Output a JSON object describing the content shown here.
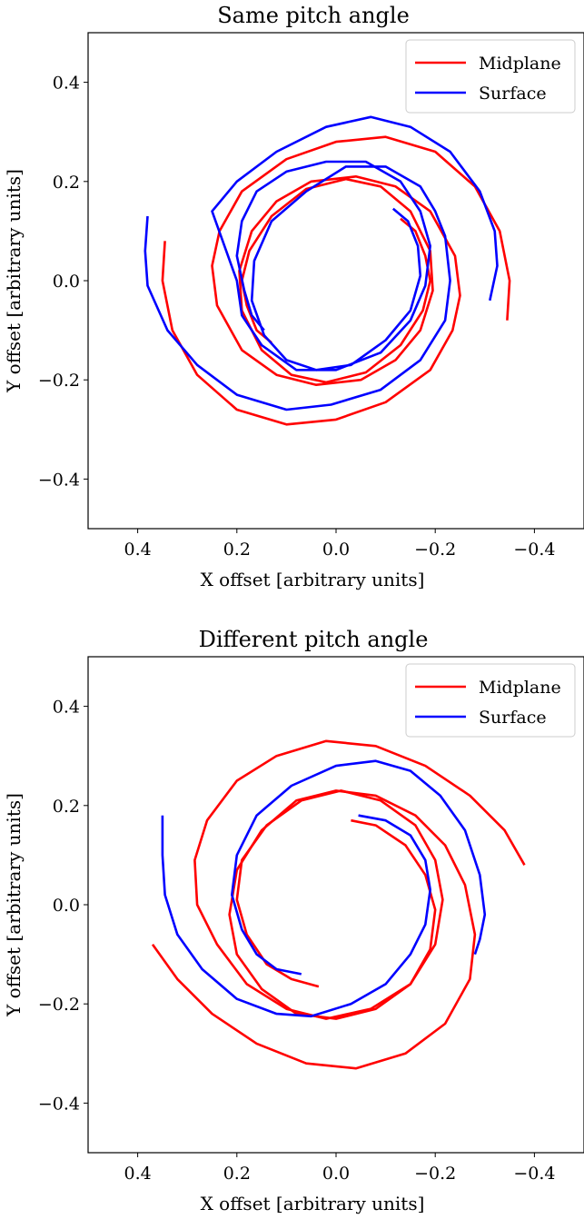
{
  "colors": {
    "midplane": "#ff0000",
    "surface": "#0000ff"
  },
  "chart_data": [
    {
      "type": "line",
      "title": "Same pitch angle",
      "xlabel": "X offset [arbitrary units]",
      "ylabel": "Y offset [arbitrary units]",
      "xlim": [
        0.5,
        -0.5
      ],
      "ylim": [
        -0.5,
        0.5
      ],
      "x_inverted": true,
      "xticks": [
        0.4,
        0.2,
        0.0,
        -0.2,
        -0.4
      ],
      "yticks": [
        0.4,
        0.2,
        0.0,
        -0.2,
        -0.4
      ],
      "xtick_labels": [
        "0.4",
        "0.2",
        "0.0",
        "−0.2",
        "−0.4"
      ],
      "ytick_labels": [
        "0.4",
        "0.2",
        "0.0",
        "−0.2",
        "−0.4"
      ],
      "grid": false,
      "legend_position": "top-right",
      "legend": [
        "Midplane",
        "Surface"
      ],
      "series": [
        {
          "name": "Midplane",
          "color": "#ff0000",
          "arms": [
            [
              [
                -0.13,
                0.125
              ],
              [
                -0.16,
                0.1
              ],
              [
                -0.18,
                0.05
              ],
              [
                -0.19,
                0.0
              ],
              [
                -0.175,
                -0.06
              ],
              [
                -0.13,
                -0.13
              ],
              [
                -0.06,
                -0.185
              ],
              [
                0.02,
                -0.205
              ],
              [
                0.09,
                -0.19
              ],
              [
                0.15,
                -0.14
              ],
              [
                0.19,
                -0.06
              ],
              [
                0.195,
                0.02
              ],
              [
                0.17,
                0.1
              ],
              [
                0.12,
                0.16
              ],
              [
                0.05,
                0.2
              ],
              [
                -0.04,
                0.21
              ],
              [
                -0.12,
                0.19
              ],
              [
                -0.19,
                0.14
              ],
              [
                -0.24,
                0.05
              ],
              [
                -0.25,
                -0.03
              ],
              [
                -0.235,
                -0.1
              ],
              [
                -0.19,
                -0.18
              ],
              [
                -0.1,
                -0.245
              ],
              [
                0.0,
                -0.28
              ],
              [
                0.1,
                -0.29
              ],
              [
                0.2,
                -0.26
              ],
              [
                0.28,
                -0.19
              ],
              [
                0.33,
                -0.1
              ],
              [
                0.35,
                0.0
              ],
              [
                0.345,
                0.08
              ]
            ],
            [
              [
                0.13,
                -0.125
              ],
              [
                0.16,
                -0.1
              ],
              [
                0.18,
                -0.05
              ],
              [
                0.19,
                0.0
              ],
              [
                0.175,
                0.06
              ],
              [
                0.13,
                0.13
              ],
              [
                0.06,
                0.185
              ],
              [
                -0.02,
                0.205
              ],
              [
                -0.09,
                0.19
              ],
              [
                -0.15,
                0.14
              ],
              [
                -0.19,
                0.06
              ],
              [
                -0.195,
                -0.02
              ],
              [
                -0.17,
                -0.1
              ],
              [
                -0.12,
                -0.16
              ],
              [
                -0.05,
                -0.2
              ],
              [
                0.04,
                -0.21
              ],
              [
                0.12,
                -0.19
              ],
              [
                0.19,
                -0.14
              ],
              [
                0.24,
                -0.05
              ],
              [
                0.25,
                0.03
              ],
              [
                0.235,
                0.1
              ],
              [
                0.19,
                0.18
              ],
              [
                0.1,
                0.245
              ],
              [
                0.0,
                0.28
              ],
              [
                -0.1,
                0.29
              ],
              [
                -0.2,
                0.26
              ],
              [
                -0.28,
                0.19
              ],
              [
                -0.33,
                0.1
              ],
              [
                -0.35,
                0.0
              ],
              [
                -0.345,
                -0.08
              ]
            ]
          ]
        },
        {
          "name": "Surface",
          "color": "#0000ff",
          "arms": [
            [
              [
                -0.115,
                0.145
              ],
              [
                -0.145,
                0.12
              ],
              [
                -0.165,
                0.07
              ],
              [
                -0.17,
                0.01
              ],
              [
                -0.15,
                -0.06
              ],
              [
                -0.1,
                -0.12
              ],
              [
                -0.03,
                -0.17
              ],
              [
                0.04,
                -0.18
              ],
              [
                0.1,
                -0.16
              ],
              [
                0.145,
                -0.11
              ],
              [
                0.17,
                -0.04
              ],
              [
                0.165,
                0.04
              ],
              [
                0.13,
                0.12
              ],
              [
                0.06,
                0.18
              ],
              [
                -0.02,
                0.23
              ],
              [
                -0.1,
                0.23
              ],
              [
                -0.17,
                0.19
              ],
              [
                -0.2,
                0.14
              ],
              [
                -0.22,
                0.09
              ],
              [
                -0.23,
                0.0
              ],
              [
                -0.22,
                -0.08
              ],
              [
                -0.17,
                -0.16
              ],
              [
                -0.09,
                -0.22
              ],
              [
                0.01,
                -0.25
              ],
              [
                0.1,
                -0.26
              ],
              [
                0.2,
                -0.23
              ],
              [
                0.28,
                -0.17
              ],
              [
                0.34,
                -0.1
              ],
              [
                0.38,
                -0.01
              ],
              [
                0.385,
                0.06
              ],
              [
                0.38,
                0.13
              ]
            ],
            [
              [
                0.145,
                -0.1
              ],
              [
                0.17,
                -0.07
              ],
              [
                0.185,
                -0.02
              ],
              [
                0.2,
                0.05
              ],
              [
                0.19,
                0.12
              ],
              [
                0.16,
                0.18
              ],
              [
                0.1,
                0.22
              ],
              [
                0.02,
                0.24
              ],
              [
                -0.06,
                0.24
              ],
              [
                -0.13,
                0.2
              ],
              [
                -0.17,
                0.14
              ],
              [
                -0.19,
                0.07
              ],
              [
                -0.18,
                -0.01
              ],
              [
                -0.15,
                -0.08
              ],
              [
                -0.09,
                -0.145
              ],
              [
                0.0,
                -0.18
              ],
              [
                0.08,
                -0.18
              ],
              [
                0.15,
                -0.13
              ],
              [
                0.19,
                -0.07
              ],
              [
                0.2,
                0.0
              ],
              [
                0.25,
                0.14
              ],
              [
                0.2,
                0.2
              ],
              [
                0.12,
                0.26
              ],
              [
                0.02,
                0.31
              ],
              [
                -0.07,
                0.33
              ],
              [
                -0.15,
                0.31
              ],
              [
                -0.23,
                0.26
              ],
              [
                -0.29,
                0.18
              ],
              [
                -0.32,
                0.1
              ],
              [
                -0.325,
                0.03
              ],
              [
                -0.31,
                -0.04
              ]
            ]
          ]
        }
      ]
    },
    {
      "type": "line",
      "title": "Different pitch angle",
      "xlabel": "X offset [arbitrary units]",
      "ylabel": "Y offset [arbitrary units]",
      "xlim": [
        0.5,
        -0.5
      ],
      "ylim": [
        -0.5,
        0.5
      ],
      "x_inverted": true,
      "xticks": [
        0.4,
        0.2,
        0.0,
        -0.2,
        -0.4
      ],
      "yticks": [
        0.4,
        0.2,
        0.0,
        -0.2,
        -0.4
      ],
      "xtick_labels": [
        "0.4",
        "0.2",
        "0.0",
        "−0.2",
        "−0.4"
      ],
      "ytick_labels": [
        "0.4",
        "0.2",
        "0.0",
        "−0.2",
        "−0.4"
      ],
      "grid": false,
      "legend_position": "top-right",
      "legend": [
        "Midplane",
        "Surface"
      ],
      "series": [
        {
          "name": "Midplane",
          "color": "#ff0000",
          "arms": [
            [
              [
                -0.03,
                0.17
              ],
              [
                -0.08,
                0.16
              ],
              [
                -0.14,
                0.12
              ],
              [
                -0.18,
                0.06
              ],
              [
                -0.2,
                -0.01
              ],
              [
                -0.19,
                -0.09
              ],
              [
                -0.15,
                -0.16
              ],
              [
                -0.08,
                -0.21
              ],
              [
                0.0,
                -0.23
              ],
              [
                0.08,
                -0.22
              ],
              [
                0.15,
                -0.17
              ],
              [
                0.2,
                -0.1
              ],
              [
                0.215,
                -0.02
              ],
              [
                0.2,
                0.07
              ],
              [
                0.15,
                0.15
              ],
              [
                0.08,
                0.21
              ],
              [
                0.0,
                0.23
              ],
              [
                -0.08,
                0.22
              ],
              [
                -0.16,
                0.18
              ],
              [
                -0.22,
                0.12
              ],
              [
                -0.26,
                0.04
              ],
              [
                -0.28,
                -0.06
              ],
              [
                -0.27,
                -0.15
              ],
              [
                -0.22,
                -0.24
              ],
              [
                -0.14,
                -0.3
              ],
              [
                -0.04,
                -0.33
              ],
              [
                0.06,
                -0.32
              ],
              [
                0.16,
                -0.28
              ],
              [
                0.25,
                -0.22
              ],
              [
                0.32,
                -0.15
              ],
              [
                0.37,
                -0.08
              ]
            ],
            [
              [
                0.035,
                -0.165
              ],
              [
                0.09,
                -0.15
              ],
              [
                0.14,
                -0.12
              ],
              [
                0.18,
                -0.06
              ],
              [
                0.2,
                0.01
              ],
              [
                0.19,
                0.09
              ],
              [
                0.14,
                0.16
              ],
              [
                0.07,
                0.21
              ],
              [
                -0.01,
                0.23
              ],
              [
                -0.09,
                0.21
              ],
              [
                -0.16,
                0.16
              ],
              [
                -0.2,
                0.09
              ],
              [
                -0.215,
                0.01
              ],
              [
                -0.2,
                -0.08
              ],
              [
                -0.15,
                -0.16
              ],
              [
                -0.07,
                -0.21
              ],
              [
                0.02,
                -0.23
              ],
              [
                0.1,
                -0.21
              ],
              [
                0.18,
                -0.16
              ],
              [
                0.24,
                -0.08
              ],
              [
                0.28,
                0.0
              ],
              [
                0.285,
                0.09
              ],
              [
                0.26,
                0.17
              ],
              [
                0.2,
                0.25
              ],
              [
                0.12,
                0.3
              ],
              [
                0.02,
                0.33
              ],
              [
                -0.08,
                0.32
              ],
              [
                -0.18,
                0.28
              ],
              [
                -0.27,
                0.22
              ],
              [
                -0.34,
                0.15
              ],
              [
                -0.38,
                0.08
              ]
            ]
          ]
        },
        {
          "name": "Surface",
          "color": "#0000ff",
          "arms": [
            [
              [
                -0.045,
                0.18
              ],
              [
                -0.1,
                0.17
              ],
              [
                -0.15,
                0.14
              ],
              [
                -0.18,
                0.09
              ],
              [
                -0.19,
                0.03
              ],
              [
                -0.18,
                -0.04
              ],
              [
                -0.15,
                -0.1
              ],
              [
                -0.1,
                -0.16
              ],
              [
                -0.03,
                -0.2
              ],
              [
                0.05,
                -0.225
              ],
              [
                0.12,
                -0.22
              ],
              [
                0.2,
                -0.19
              ],
              [
                0.27,
                -0.13
              ],
              [
                0.32,
                -0.06
              ],
              [
                0.345,
                0.02
              ],
              [
                0.35,
                0.1
              ],
              [
                0.35,
                0.18
              ]
            ],
            [
              [
                0.07,
                -0.14
              ],
              [
                0.12,
                -0.13
              ],
              [
                0.16,
                -0.1
              ],
              [
                0.19,
                -0.05
              ],
              [
                0.21,
                0.02
              ],
              [
                0.2,
                0.1
              ],
              [
                0.16,
                0.18
              ],
              [
                0.09,
                0.24
              ],
              [
                0.0,
                0.28
              ],
              [
                -0.08,
                0.29
              ],
              [
                -0.15,
                0.27
              ],
              [
                -0.21,
                0.22
              ],
              [
                -0.26,
                0.15
              ],
              [
                -0.29,
                0.06
              ],
              [
                -0.3,
                -0.02
              ],
              [
                -0.29,
                -0.07
              ],
              [
                -0.28,
                -0.1
              ]
            ]
          ]
        }
      ]
    }
  ]
}
